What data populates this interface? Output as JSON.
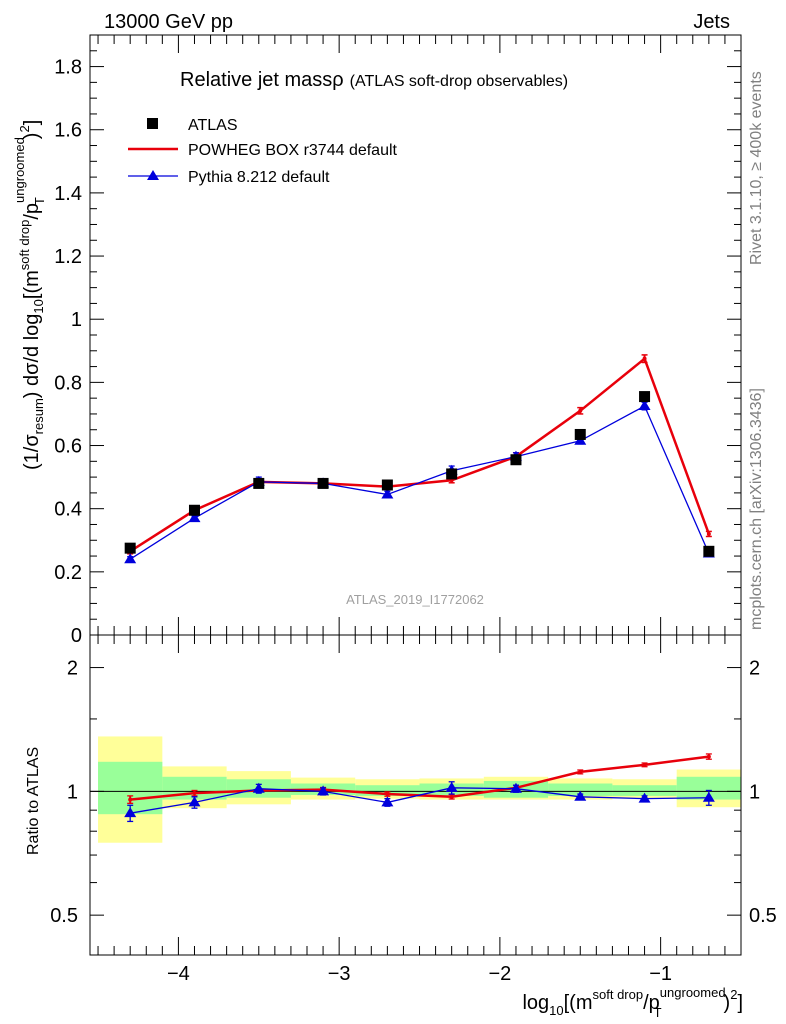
{
  "header": {
    "energy": "13000 GeV pp",
    "process": "Jets"
  },
  "side_text": {
    "rivet": "Rivet 3.1.10, ≥ 400k events",
    "mcplots": "mcplots.cern.ch [arXiv:1306.3436]"
  },
  "analysis_id": "ATLAS_2019_I1772062",
  "title": {
    "main": "Relative jet massρ",
    "sub": "(ATLAS soft-drop observables)"
  },
  "legend": {
    "atlas": "ATLAS",
    "powheg": "POWHEG BOX r3744 default",
    "pythia": "Pythia 8.212 default"
  },
  "axis_text": {
    "y_main": {
      "a": "(1/σ",
      "a_sub": "resum",
      "b": ") dσ/d log",
      "b_sub": "10",
      "c": "[(m",
      "c_sup": "soft drop",
      "d": "/p",
      "d_sup": "ungroomed",
      "d_sub": "T",
      "e": ")",
      "e_sup": "2",
      "f": "]"
    },
    "y_ratio": "Ratio to ATLAS",
    "x": {
      "a": "log",
      "a_sub": "10",
      "b": "[(m",
      "b_sup": "soft drop",
      "c": "/p",
      "c_sup": "ungroomed",
      "c_sub": "T",
      "d": ")",
      "d_sup": "2",
      "e": "]"
    }
  },
  "colors": {
    "atlas": "#000000",
    "powheg": "#e8000b",
    "pythia": "#0000dc",
    "band_outer": "#ffff99",
    "band_inner": "#99ff99",
    "side_text": "#808080"
  },
  "chart_data": {
    "type": "line",
    "x_range": [
      -4.55,
      -0.5
    ],
    "x_ticks": [
      {
        "value": -4,
        "label": "−4"
      },
      {
        "value": -3,
        "label": "−3"
      },
      {
        "value": -2,
        "label": "−2"
      },
      {
        "value": -1,
        "label": "−1"
      }
    ],
    "bin_edges": [
      -4.5,
      -4.1,
      -3.7,
      -3.3,
      -2.9,
      -2.5,
      -2.1,
      -1.7,
      -1.3,
      -0.9,
      -0.5
    ],
    "x": [
      -4.3,
      -3.9,
      -3.5,
      -3.1,
      -2.7,
      -2.3,
      -1.9,
      -1.5,
      -1.1,
      -0.7
    ],
    "main": {
      "ylim": [
        0,
        1.9
      ],
      "y_ticks": [
        {
          "value": 0,
          "label": "0"
        },
        {
          "value": 0.2,
          "label": "0.2"
        },
        {
          "value": 0.4,
          "label": "0.4"
        },
        {
          "value": 0.6,
          "label": "0.6"
        },
        {
          "value": 0.8,
          "label": "0.8"
        },
        {
          "value": 1.0,
          "label": "1"
        },
        {
          "value": 1.2,
          "label": "1.2"
        },
        {
          "value": 1.4,
          "label": "1.4"
        },
        {
          "value": 1.6,
          "label": "1.6"
        },
        {
          "value": 1.8,
          "label": "1.8"
        }
      ],
      "series": [
        {
          "name": "ATLAS",
          "style": "square",
          "values": [
            0.275,
            0.395,
            0.48,
            0.48,
            0.475,
            0.51,
            0.555,
            0.635,
            0.755,
            0.265
          ]
        },
        {
          "name": "POWHEG BOX r3744 default",
          "style": "line-thick",
          "values": [
            0.265,
            0.395,
            0.485,
            0.48,
            0.47,
            0.49,
            0.565,
            0.71,
            0.875,
            0.32
          ],
          "errors": [
            0.008,
            0.006,
            0.005,
            0.005,
            0.006,
            0.008,
            0.012,
            0.01,
            0.012,
            0.008
          ]
        },
        {
          "name": "Pythia 8.212 default",
          "style": "line-triangle",
          "values": [
            0.24,
            0.37,
            0.485,
            0.48,
            0.445,
            0.52,
            0.565,
            0.615,
            0.725,
            0.258
          ],
          "errors": [
            0.008,
            0.007,
            0.015,
            0.01,
            0.01,
            0.015,
            0.012,
            0.01,
            0.012,
            0.006
          ]
        }
      ]
    },
    "ratio": {
      "ylim": [
        0.4,
        2.4
      ],
      "scale": "log",
      "y_ticks": [
        {
          "value": 0.5,
          "label": "0.5"
        },
        {
          "value": 1,
          "label": "1"
        },
        {
          "value": 2,
          "label": "2"
        }
      ],
      "band_outer": [
        [
          0.75,
          1.36
        ],
        [
          0.91,
          1.15
        ],
        [
          0.93,
          1.12
        ],
        [
          0.955,
          1.08
        ],
        [
          0.96,
          1.07
        ],
        [
          0.955,
          1.075
        ],
        [
          0.955,
          1.085
        ],
        [
          0.955,
          1.075
        ],
        [
          0.96,
          1.07
        ],
        [
          0.915,
          1.13
        ]
      ],
      "band_inner": [
        [
          0.88,
          1.18
        ],
        [
          0.955,
          1.085
        ],
        [
          0.965,
          1.07
        ],
        [
          0.98,
          1.045
        ],
        [
          0.975,
          1.035
        ],
        [
          0.975,
          1.045
        ],
        [
          0.965,
          1.06
        ],
        [
          0.975,
          1.045
        ],
        [
          0.975,
          1.035
        ],
        [
          0.955,
          1.085
        ]
      ],
      "series": [
        {
          "name": "POWHEG BOX r3744 default",
          "values": [
            0.955,
            0.99,
            1.005,
            1.01,
            0.985,
            0.97,
            1.02,
            1.115,
            1.16,
            1.215
          ],
          "errors": [
            0.02,
            0.015,
            0.01,
            0.012,
            0.012,
            0.012,
            0.015,
            0.012,
            0.012,
            0.018
          ]
        },
        {
          "name": "Pythia 8.212 default",
          "values": [
            0.885,
            0.94,
            1.015,
            1.0,
            0.94,
            1.02,
            1.015,
            0.97,
            0.96,
            0.965
          ],
          "errors": [
            0.04,
            0.03,
            0.025,
            0.02,
            0.02,
            0.035,
            0.02,
            0.015,
            0.015,
            0.04
          ]
        }
      ]
    }
  }
}
